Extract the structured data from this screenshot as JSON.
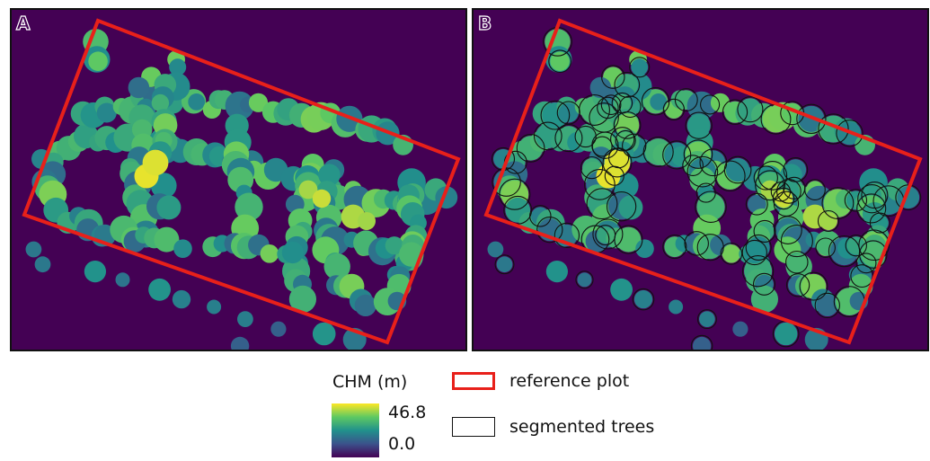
{
  "panels": [
    {
      "id": "A",
      "label": "A",
      "layer": "CHM",
      "shows_segmentation": false
    },
    {
      "id": "B",
      "label": "B",
      "layer": "CHM",
      "shows_segmentation": true
    }
  ],
  "legend": {
    "chm_title": "CHM (m)",
    "chm_max": "46.8",
    "chm_min": "0.0",
    "colormap": [
      "#fde725",
      "#5ec962",
      "#21918c",
      "#3b528b",
      "#440154"
    ],
    "reference_label": "reference plot",
    "reference_color": "#e8201a",
    "segment_label": "segmented trees",
    "segment_color": "#111111"
  }
}
